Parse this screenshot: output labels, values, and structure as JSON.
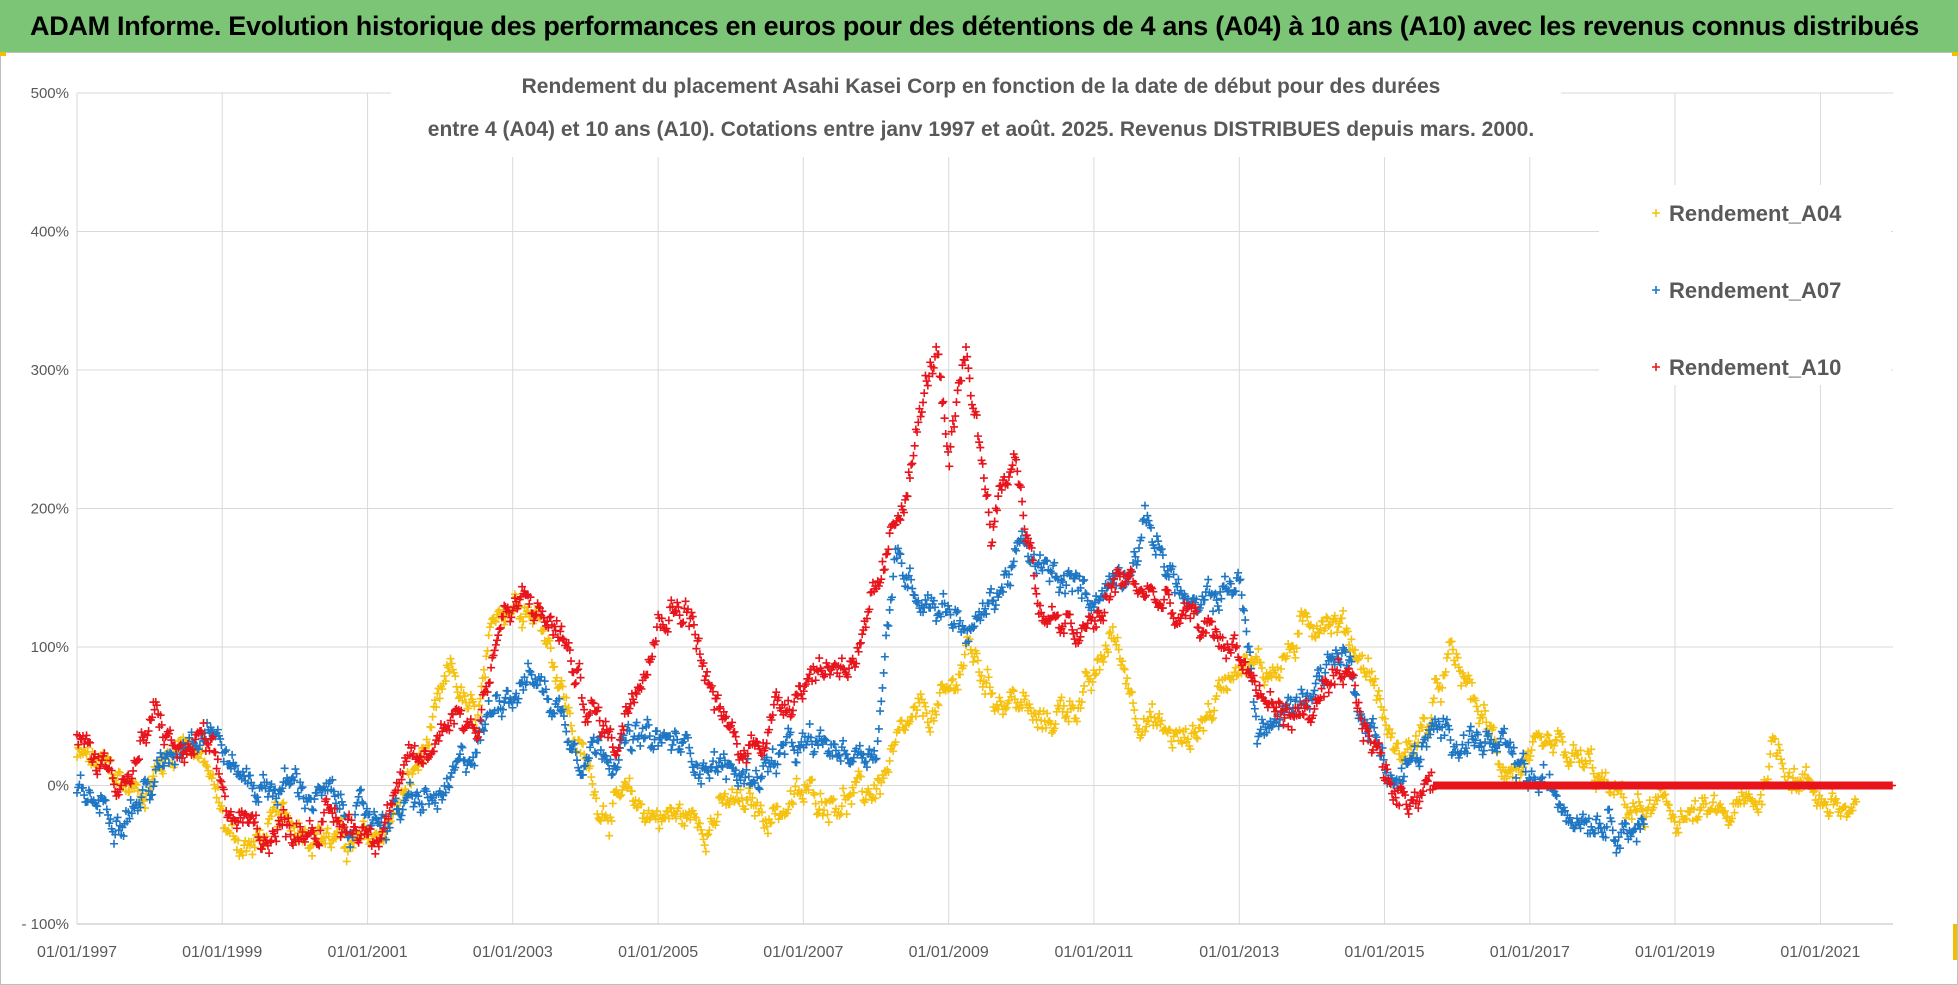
{
  "banner": {
    "title": "ADAM Informe. Evolution historique des performances en euros pour des détentions de 4 ans (A04) à 10 ans (A10) avec les revenus connus distribués"
  },
  "colors": {
    "banner_bg": "#7cc576",
    "A04": "#f5c211",
    "A07": "#1f77c4",
    "A10": "#e8141c",
    "grid": "#d9d9d9"
  },
  "chart_data": {
    "type": "scatter",
    "title_lines": [
      "Rendement du placement Asahi Kasei Corp en fonction de la date de début pour des durées",
      "entre 4 (A04) et 10 ans (A10). Cotations entre janv 1997 et août. 2025. Revenus DISTRIBUES depuis mars. 2000."
    ],
    "x_axis": {
      "type": "date",
      "min": "1997-01-01",
      "max": "2022-01-01",
      "tick_labels": [
        "01/01/1997",
        "01/01/1999",
        "01/01/2001",
        "01/01/2003",
        "01/01/2005",
        "01/01/2007",
        "01/01/2009",
        "01/01/2011",
        "01/01/2013",
        "01/01/2015",
        "01/01/2017",
        "01/01/2019",
        "01/01/2021"
      ]
    },
    "y_axis": {
      "min": -100,
      "max": 500,
      "step": 100,
      "unit": "%",
      "tick_labels": [
        "- 100%",
        "0%",
        "100%",
        "200%",
        "300%",
        "400%",
        "500%"
      ]
    },
    "grid": true,
    "legend_position": "right",
    "marker": "+",
    "series": [
      {
        "name": "Rendement_A04",
        "color": "#f5c211",
        "start": "1997-01-01",
        "end": "2021-07-01",
        "points": [
          [
            "1997-01-01",
            20
          ],
          [
            "1997-06-01",
            10
          ],
          [
            "1997-11-01",
            -5
          ],
          [
            "1998-03-01",
            15
          ],
          [
            "1998-07-01",
            40
          ],
          [
            "1998-11-01",
            5
          ],
          [
            "1999-02-01",
            -35
          ],
          [
            "1999-06-01",
            -45
          ],
          [
            "1999-10-01",
            -30
          ],
          [
            "2000-03-01",
            -25
          ],
          [
            "2000-08-01",
            -40
          ],
          [
            "2001-01-01",
            -45
          ],
          [
            "2001-04-01",
            -30
          ],
          [
            "2001-08-01",
            0
          ],
          [
            "2001-12-01",
            40
          ],
          [
            "2002-03-01",
            80
          ],
          [
            "2002-07-01",
            40
          ],
          [
            "2002-11-01",
            130
          ],
          [
            "2003-03-01",
            140
          ],
          [
            "2003-07-01",
            110
          ],
          [
            "2003-11-01",
            40
          ],
          [
            "2004-03-01",
            -10
          ],
          [
            "2004-08-01",
            -15
          ],
          [
            "2005-01-01",
            -20
          ],
          [
            "2005-07-01",
            -25
          ],
          [
            "2006-01-01",
            -15
          ],
          [
            "2006-06-01",
            -20
          ],
          [
            "2007-01-01",
            -10
          ],
          [
            "2007-06-01",
            -5
          ],
          [
            "2007-11-01",
            -10
          ],
          [
            "2008-03-01",
            10
          ],
          [
            "2008-07-01",
            40
          ],
          [
            "2009-01-01",
            60
          ],
          [
            "2009-04-01",
            100
          ],
          [
            "2009-08-01",
            70
          ],
          [
            "2010-01-01",
            60
          ],
          [
            "2010-04-01",
            40
          ],
          [
            "2010-09-01",
            60
          ],
          [
            "2011-01-01",
            70
          ],
          [
            "2011-04-01",
            110
          ],
          [
            "2011-08-01",
            60
          ],
          [
            "2011-12-01",
            40
          ],
          [
            "2012-04-01",
            30
          ],
          [
            "2012-09-01",
            60
          ],
          [
            "2013-01-01",
            100
          ],
          [
            "2013-05-01",
            80
          ],
          [
            "2013-10-01",
            100
          ],
          [
            "2014-03-01",
            130
          ],
          [
            "2014-07-01",
            110
          ],
          [
            "2014-11-01",
            80
          ],
          [
            "2015-03-01",
            20
          ],
          [
            "2015-08-01",
            40
          ],
          [
            "2015-12-01",
            90
          ],
          [
            "2016-04-01",
            60
          ],
          [
            "2016-08-01",
            20
          ],
          [
            "2017-01-01",
            10
          ],
          [
            "2017-06-01",
            20
          ],
          [
            "2017-11-01",
            10
          ],
          [
            "2018-03-01",
            -10
          ],
          [
            "2018-08-01",
            -20
          ],
          [
            "2019-01-01",
            -20
          ],
          [
            "2019-07-01",
            -25
          ],
          [
            "2019-12-01",
            -20
          ],
          [
            "2020-03-01",
            -10
          ],
          [
            "2020-05-01",
            30
          ],
          [
            "2020-10-01",
            5
          ],
          [
            "2021-02-01",
            -10
          ],
          [
            "2021-07-01",
            -25
          ]
        ]
      },
      {
        "name": "Rendement_A07",
        "color": "#1f77c4",
        "start": "1997-01-01",
        "end": "2018-08-01",
        "points": [
          [
            "1997-01-01",
            -5
          ],
          [
            "1997-06-01",
            -15
          ],
          [
            "1997-11-01",
            -10
          ],
          [
            "1998-03-01",
            10
          ],
          [
            "1998-07-01",
            40
          ],
          [
            "1998-11-01",
            50
          ],
          [
            "1999-03-01",
            10
          ],
          [
            "1999-08-01",
            0
          ],
          [
            "2000-01-01",
            0
          ],
          [
            "2000-06-01",
            -10
          ],
          [
            "2000-11-01",
            -25
          ],
          [
            "2001-04-01",
            -20
          ],
          [
            "2001-09-01",
            -15
          ],
          [
            "2002-02-01",
            -10
          ],
          [
            "2002-07-01",
            30
          ],
          [
            "2002-11-01",
            70
          ],
          [
            "2003-04-01",
            80
          ],
          [
            "2003-08-01",
            60
          ],
          [
            "2003-12-01",
            30
          ],
          [
            "2004-05-01",
            30
          ],
          [
            "2004-10-01",
            30
          ],
          [
            "2005-03-01",
            30
          ],
          [
            "2005-09-01",
            20
          ],
          [
            "2006-03-01",
            5
          ],
          [
            "2006-09-01",
            20
          ],
          [
            "2007-03-01",
            25
          ],
          [
            "2007-09-01",
            25
          ],
          [
            "2008-01-01",
            30
          ],
          [
            "2008-04-01",
            160
          ],
          [
            "2008-09-01",
            140
          ],
          [
            "2009-01-01",
            130
          ],
          [
            "2009-05-01",
            110
          ],
          [
            "2009-09-01",
            140
          ],
          [
            "2010-01-01",
            170
          ],
          [
            "2010-05-01",
            150
          ],
          [
            "2010-10-01",
            140
          ],
          [
            "2011-02-01",
            140
          ],
          [
            "2011-06-01",
            160
          ],
          [
            "2011-10-01",
            190
          ],
          [
            "2012-02-01",
            150
          ],
          [
            "2012-06-01",
            120
          ],
          [
            "2012-10-01",
            140
          ],
          [
            "2013-01-01",
            150
          ],
          [
            "2013-04-01",
            40
          ],
          [
            "2013-09-01",
            50
          ],
          [
            "2014-02-01",
            80
          ],
          [
            "2014-06-01",
            100
          ],
          [
            "2014-10-01",
            50
          ],
          [
            "2015-03-01",
            0
          ],
          [
            "2015-08-01",
            30
          ],
          [
            "2016-01-01",
            40
          ],
          [
            "2016-06-01",
            30
          ],
          [
            "2016-11-01",
            10
          ],
          [
            "2017-04-01",
            -5
          ],
          [
            "2017-09-01",
            -15
          ],
          [
            "2018-02-01",
            -20
          ],
          [
            "2018-08-01",
            -30
          ]
        ]
      },
      {
        "name": "Rendement_A10",
        "color": "#e8141c",
        "start": "1997-01-01",
        "end": "2022-01-01",
        "points": [
          [
            "1997-01-01",
            30
          ],
          [
            "1997-06-01",
            15
          ],
          [
            "1997-10-01",
            5
          ],
          [
            "1998-02-01",
            50
          ],
          [
            "1998-06-01",
            20
          ],
          [
            "1998-10-01",
            30
          ],
          [
            "1999-02-01",
            -20
          ],
          [
            "1999-06-01",
            -35
          ],
          [
            "1999-11-01",
            -30
          ],
          [
            "2000-04-01",
            -25
          ],
          [
            "2000-09-01",
            -30
          ],
          [
            "2001-02-01",
            -30
          ],
          [
            "2001-06-01",
            0
          ],
          [
            "2001-11-01",
            20
          ],
          [
            "2002-03-01",
            60
          ],
          [
            "2002-07-01",
            40
          ],
          [
            "2002-11-01",
            120
          ],
          [
            "2003-04-01",
            130
          ],
          [
            "2003-09-01",
            110
          ],
          [
            "2004-01-01",
            60
          ],
          [
            "2004-06-01",
            30
          ],
          [
            "2004-10-01",
            90
          ],
          [
            "2005-02-01",
            130
          ],
          [
            "2005-06-01",
            130
          ],
          [
            "2005-10-01",
            60
          ],
          [
            "2006-03-01",
            20
          ],
          [
            "2006-08-01",
            50
          ],
          [
            "2007-01-01",
            80
          ],
          [
            "2007-07-01",
            90
          ],
          [
            "2007-11-01",
            100
          ],
          [
            "2008-03-01",
            160
          ],
          [
            "2008-07-01",
            240
          ],
          [
            "2008-11-01",
            320
          ],
          [
            "2009-01-01",
            220
          ],
          [
            "2009-04-01",
            310
          ],
          [
            "2009-08-01",
            190
          ],
          [
            "2009-12-01",
            240
          ],
          [
            "2010-04-01",
            130
          ],
          [
            "2010-08-01",
            110
          ],
          [
            "2011-01-01",
            110
          ],
          [
            "2011-05-01",
            150
          ],
          [
            "2011-10-01",
            140
          ],
          [
            "2012-03-01",
            120
          ],
          [
            "2012-08-01",
            110
          ],
          [
            "2013-01-01",
            100
          ],
          [
            "2013-05-01",
            60
          ],
          [
            "2013-10-01",
            50
          ],
          [
            "2014-03-01",
            60
          ],
          [
            "2014-07-01",
            70
          ],
          [
            "2014-11-01",
            30
          ],
          [
            "2015-03-01",
            -5
          ],
          [
            "2015-08-01",
            0
          ],
          [
            "2016-01-01",
            0
          ],
          [
            "2018-01-01",
            0
          ],
          [
            "2020-01-01",
            0
          ],
          [
            "2022-01-01",
            0
          ]
        ]
      }
    ]
  }
}
